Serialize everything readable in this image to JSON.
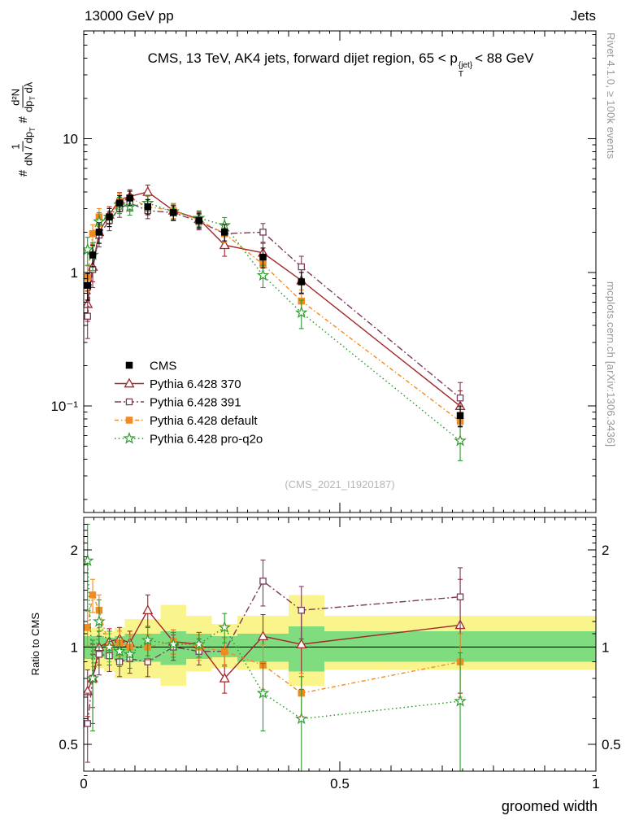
{
  "header": {
    "left": "13000 GeV pp",
    "right": "Jets"
  },
  "title": {
    "prefix": "CMS, 13 TeV, AK4 jets, forward dijet region, 65 < p",
    "sup": "{jet}",
    "sub": "T",
    "suffix": "< 88 GeV"
  },
  "side": {
    "top": "Rivet 4.1.0, ≥ 100k events",
    "bottom": "mcplots.cern.ch [arXiv:1306.3436]"
  },
  "watermark": "(CMS_2021_I1920187)",
  "axes": {
    "x_label": "groomed width",
    "ratio_label": "Ratio to CMS",
    "y_label": {
      "hash1": "#",
      "f1_num": "1",
      "f1_den": "dN / dp",
      "f1_den_sub": "T",
      "hash2": "#",
      "f2_num": "d²N",
      "f2_den_a": "dp",
      "f2_den_a_sub": "T",
      "f2_den_b": " dλ"
    }
  },
  "chart_data": {
    "type": "line",
    "title": "CMS, 13 TeV, AK4 jets, forward dijet region, 65 < pT{jet} < 88 GeV",
    "xlabel": "groomed width",
    "ylabel_ratio": "Ratio to CMS",
    "xlim": [
      0,
      1
    ],
    "main_ylim": [
      0.016,
      64
    ],
    "ratio_ylim": [
      0.413,
      2.52
    ],
    "main_yscale": "log",
    "ratio_yscale": "log",
    "x_ticks": [
      {
        "v": 0,
        "label": "0"
      },
      {
        "v": 0.5,
        "label": "0.5"
      },
      {
        "v": 1,
        "label": "1"
      }
    ],
    "y_ticks_main": [
      {
        "v": 10,
        "label": "10"
      },
      {
        "v": 1,
        "label": "1"
      },
      {
        "v": 0.1,
        "label": "10⁻¹"
      }
    ],
    "y_ticks_ratio": [
      {
        "v": 2,
        "label": "2"
      },
      {
        "v": 1,
        "label": "1"
      },
      {
        "v": 0.5,
        "label": "0.5"
      }
    ],
    "x": [
      0.0075,
      0.0175,
      0.03,
      0.05,
      0.07,
      0.09,
      0.125,
      0.175,
      0.225,
      0.275,
      0.35,
      0.425,
      0.735
    ],
    "series": [
      {
        "name": "CMS",
        "color": "#000000",
        "marker": "square",
        "filled": true,
        "line": "none",
        "y": [
          0.8,
          1.35,
          2.0,
          2.6,
          3.3,
          3.6,
          3.1,
          2.8,
          2.45,
          2.0,
          1.3,
          0.85,
          0.085
        ],
        "ey": [
          0.18,
          0.25,
          0.35,
          0.4,
          0.45,
          0.45,
          0.4,
          0.35,
          0.32,
          0.28,
          0.22,
          0.15,
          0.015
        ],
        "ratio": null,
        "ratio_ey": null
      },
      {
        "name": "Pythia 6.428 370",
        "color": "#a3262a",
        "marker": "triangle",
        "filled": false,
        "line": "solid",
        "y": [
          0.58,
          1.1,
          2.0,
          2.7,
          3.5,
          3.7,
          4.0,
          2.9,
          2.5,
          1.6,
          1.4,
          0.87,
          0.1
        ],
        "ey": [
          0.15,
          0.25,
          0.35,
          0.4,
          0.45,
          0.45,
          0.5,
          0.38,
          0.33,
          0.28,
          0.25,
          0.18,
          0.03
        ],
        "ratio": [
          0.73,
          0.8,
          1.0,
          1.04,
          1.06,
          1.03,
          1.3,
          1.04,
          1.02,
          0.8,
          1.08,
          1.02,
          1.17
        ],
        "ratio_ey": [
          0.12,
          0.15,
          0.12,
          0.1,
          0.09,
          0.09,
          0.15,
          0.09,
          0.09,
          0.08,
          0.18,
          0.28,
          0.45
        ]
      },
      {
        "name": "Pythia 6.428 391",
        "color": "#7b3b5a",
        "marker": "square",
        "filled": false,
        "line": "dash-dot",
        "y": [
          0.47,
          1.05,
          1.9,
          2.45,
          3.0,
          3.3,
          2.9,
          2.8,
          2.4,
          1.95,
          2.0,
          1.1,
          0.115
        ],
        "ey": [
          0.15,
          0.28,
          0.35,
          0.4,
          0.42,
          0.42,
          0.38,
          0.36,
          0.32,
          0.28,
          0.32,
          0.22,
          0.035
        ],
        "ratio": [
          0.58,
          0.8,
          0.95,
          0.94,
          0.9,
          0.92,
          0.9,
          1.0,
          0.97,
          0.97,
          1.6,
          1.3,
          1.43
        ],
        "ratio_ey": [
          0.14,
          0.22,
          0.13,
          0.1,
          0.09,
          0.09,
          0.09,
          0.09,
          0.09,
          0.1,
          0.26,
          0.24,
          0.33
        ]
      },
      {
        "name": "Pythia 6.428 default",
        "color": "#f18a20",
        "marker": "square",
        "filled": true,
        "line": "dash-dot-2",
        "y": [
          0.92,
          1.95,
          2.6,
          2.6,
          3.4,
          3.6,
          3.1,
          2.9,
          2.45,
          1.95,
          1.15,
          0.61,
          0.077
        ],
        "ey": [
          0.2,
          0.32,
          0.4,
          0.4,
          0.45,
          0.45,
          0.4,
          0.38,
          0.32,
          0.28,
          0.2,
          0.13,
          0.02
        ],
        "ratio": [
          1.15,
          1.45,
          1.3,
          1.0,
          1.03,
          1.0,
          1.0,
          1.04,
          1.0,
          0.97,
          0.88,
          0.72,
          0.9
        ],
        "ratio_ey": [
          0.14,
          0.17,
          0.15,
          0.1,
          0.09,
          0.09,
          0.09,
          0.09,
          0.09,
          0.1,
          0.14,
          0.11,
          0.2
        ]
      },
      {
        "name": "Pythia 6.428 pro-q2o",
        "color": "#2e9b2e",
        "marker": "star",
        "filled": false,
        "line": "dotted",
        "y": [
          1.48,
          1.35,
          2.4,
          2.6,
          3.2,
          3.1,
          3.3,
          2.85,
          2.55,
          2.25,
          0.95,
          0.5,
          0.055
        ],
        "ey": [
          0.35,
          0.32,
          0.4,
          0.4,
          0.45,
          0.42,
          0.42,
          0.38,
          0.34,
          0.32,
          0.18,
          0.12,
          0.016
        ],
        "ratio": [
          1.85,
          0.8,
          1.2,
          1.0,
          0.97,
          0.95,
          1.05,
          1.02,
          1.02,
          1.15,
          0.72,
          0.6,
          0.68
        ],
        "ratio_ey": [
          0.55,
          0.25,
          0.2,
          0.12,
          0.1,
          0.09,
          0.11,
          0.09,
          0.09,
          0.12,
          0.17,
          0.21,
          0.28
        ]
      }
    ],
    "ratio_bands": {
      "yellow_color": "#f9f48b",
      "green_color": "#7fdd7f",
      "edges": [
        0,
        0.012,
        0.022,
        0.04,
        0.06,
        0.08,
        0.105,
        0.15,
        0.2,
        0.25,
        0.3,
        0.4,
        0.47,
        1.0
      ],
      "yellow_lo": [
        0.85,
        0.85,
        0.86,
        0.84,
        0.8,
        0.8,
        0.8,
        0.76,
        0.84,
        0.86,
        0.85,
        0.76,
        0.85
      ],
      "yellow_hi": [
        1.18,
        1.15,
        1.15,
        1.12,
        1.15,
        1.22,
        1.22,
        1.35,
        1.25,
        1.18,
        1.25,
        1.45,
        1.25
      ],
      "green_lo": [
        0.92,
        0.92,
        0.93,
        0.92,
        0.9,
        0.9,
        0.9,
        0.88,
        0.92,
        0.93,
        0.9,
        0.84,
        0.9
      ],
      "green_hi": [
        1.08,
        1.08,
        1.08,
        1.07,
        1.08,
        1.1,
        1.1,
        1.12,
        1.1,
        1.08,
        1.1,
        1.16,
        1.12
      ]
    },
    "legend_position": "inside-left-middle",
    "grid": false
  }
}
